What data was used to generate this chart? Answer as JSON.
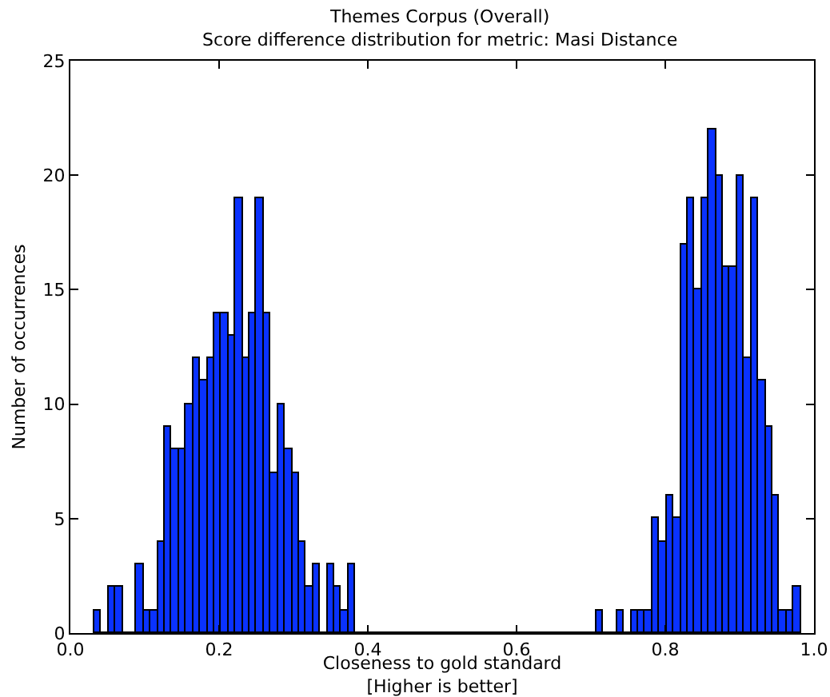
{
  "chart_data": {
    "type": "histogram",
    "title": "Themes Corpus (Overall)",
    "subtitle": "Score difference distribution for metric: Masi Distance",
    "xlabel": "Closeness to gold standard\n[Higher is better]",
    "ylabel": "Number of occurrences",
    "bins": [
      0.032,
      0.0415,
      0.051,
      0.0605,
      0.07,
      0.0795,
      0.089,
      0.0985,
      0.108,
      0.1175,
      0.127,
      0.1365,
      0.146,
      0.1555,
      0.165,
      0.1745,
      0.184,
      0.1935,
      0.203,
      0.2125,
      0.222,
      0.2315,
      0.241,
      0.2505,
      0.26,
      0.2695,
      0.279,
      0.2885,
      0.298,
      0.3075,
      0.317,
      0.3265,
      0.336,
      0.3455,
      0.355,
      0.3645,
      0.374,
      0.3835,
      0.393,
      0.4025,
      0.412,
      0.4215,
      0.431,
      0.4405,
      0.45,
      0.4595,
      0.469,
      0.4785,
      0.488,
      0.4975,
      0.507,
      0.5165,
      0.526,
      0.5355,
      0.545,
      0.5545,
      0.564,
      0.5735,
      0.583,
      0.5925,
      0.602,
      0.6115,
      0.621,
      0.6305,
      0.64,
      0.6495,
      0.659,
      0.6685,
      0.678,
      0.6875,
      0.697,
      0.7065,
      0.716,
      0.7255,
      0.735,
      0.7445,
      0.754,
      0.7635,
      0.773,
      0.7825,
      0.792,
      0.8015,
      0.811,
      0.8205,
      0.83,
      0.8395,
      0.849,
      0.8585,
      0.868,
      0.8775,
      0.887,
      0.8965,
      0.906,
      0.9155,
      0.925,
      0.9345,
      0.944,
      0.9535,
      0.963,
      0.9725,
      0.982
    ],
    "values": [
      1,
      0,
      2,
      2,
      0,
      0,
      3,
      1,
      1,
      4,
      9,
      8,
      8,
      10,
      12,
      11,
      12,
      14,
      14,
      13,
      19,
      12,
      14,
      19,
      14,
      7,
      10,
      8,
      7,
      4,
      2,
      3,
      0,
      3,
      2,
      1,
      3,
      0,
      0,
      0,
      0,
      0,
      0,
      0,
      0,
      0,
      0,
      0,
      0,
      0,
      0,
      0,
      0,
      0,
      0,
      0,
      0,
      0,
      0,
      0,
      0,
      0,
      0,
      0,
      0,
      0,
      0,
      0,
      0,
      0,
      0,
      1,
      0,
      0,
      1,
      0,
      1,
      1,
      1,
      5,
      4,
      6,
      5,
      17,
      19,
      15,
      19,
      22,
      20,
      16,
      16,
      20,
      12,
      19,
      11,
      9,
      6,
      1,
      1,
      2
    ],
    "color": "#0a32ff",
    "xlim": [
      0,
      1
    ],
    "xticks": [
      {
        "value": 0,
        "label": "0.0"
      },
      0.2,
      0.4,
      0.6,
      0.8,
      {
        "value": 1,
        "label": "1.0"
      }
    ],
    "ylim": [
      0,
      25
    ],
    "yticks": [
      0,
      5,
      10,
      15,
      20,
      25
    ]
  }
}
